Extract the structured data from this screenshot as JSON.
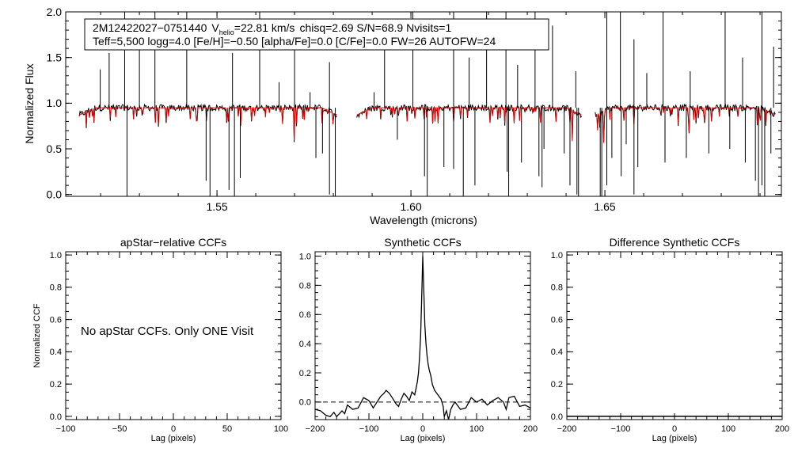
{
  "chart_data": [
    {
      "type": "line",
      "id": "spectrum",
      "xlabel": "Wavelength (microns)",
      "ylabel": "Normalized Flux",
      "xlim": [
        1.511,
        1.6955
      ],
      "ylim": [
        -0.02,
        2.0
      ],
      "xticks": [
        1.55,
        1.6,
        1.65
      ],
      "xtick_labels": [
        "1.55",
        "1.60",
        "1.65"
      ],
      "yticks": [
        0.0,
        0.5,
        1.0,
        1.5,
        2.0
      ],
      "ytick_labels": [
        "0.0",
        "0.5",
        "1.0",
        "1.5",
        "2.0"
      ],
      "annotation_line1": {
        "object": "2M12422027−0751440",
        "v_prefix": "V",
        "v_sub": "helio",
        "v_value": "=22.81 km/s",
        "rest": "chisq=2.69  S/N=68.9  Nvisits=1"
      },
      "annotation_line2": "Teff=5,500 logg=4.0 [Fe/H]=−0.50 [alpha/Fe]=0.0 [C/Fe]=0.0 FW=26 AUTOFW=24",
      "chips": [
        [
          1.5145,
          1.581
        ],
        [
          1.586,
          1.644
        ],
        [
          1.6475,
          1.694
        ]
      ],
      "continuum": 0.95,
      "series": [
        {
          "color": "#000000",
          "role": "observed"
        },
        {
          "color": "#dd0000",
          "role": "model"
        }
      ],
      "emission_spikes": [
        [
          1.5199,
          1.37
        ],
        [
          1.5222,
          1.55
        ],
        [
          1.5262,
          2.0
        ],
        [
          1.53,
          1.62
        ],
        [
          1.534,
          2.0
        ],
        [
          1.5422,
          2.0
        ],
        [
          1.554,
          1.55
        ],
        [
          1.561,
          2.0
        ],
        [
          1.566,
          1.23
        ],
        [
          1.57,
          1.62
        ],
        [
          1.574,
          1.12
        ],
        [
          1.579,
          1.45
        ],
        [
          1.5905,
          1.12
        ],
        [
          1.5932,
          1.8
        ],
        [
          1.6005,
          2.0
        ],
        [
          1.611,
          2.0
        ],
        [
          1.615,
          1.5
        ],
        [
          1.6195,
          2.0
        ],
        [
          1.6245,
          2.0
        ],
        [
          1.6275,
          1.42
        ],
        [
          1.632,
          2.0
        ],
        [
          1.6365,
          1.85
        ],
        [
          1.6425,
          1.35
        ],
        [
          1.6505,
          2.0
        ],
        [
          1.654,
          2.0
        ],
        [
          1.6575,
          1.7
        ],
        [
          1.6608,
          1.33
        ],
        [
          1.665,
          2.0
        ],
        [
          1.672,
          1.35
        ],
        [
          1.681,
          2.0
        ],
        [
          1.6855,
          1.5
        ],
        [
          1.6905,
          2.0
        ],
        [
          1.6935,
          1.62
        ]
      ],
      "absorption_dips": [
        [
          1.5268,
          -0.02
        ],
        [
          1.5472,
          0.15
        ],
        [
          1.5482,
          -0.02
        ],
        [
          1.5531,
          0.05
        ],
        [
          1.5545,
          -0.02
        ],
        [
          1.556,
          0.18
        ],
        [
          1.5755,
          0.4
        ],
        [
          1.5772,
          0.45
        ],
        [
          1.579,
          0.0
        ],
        [
          1.5805,
          -0.02
        ],
        [
          1.5965,
          0.6
        ],
        [
          1.6035,
          0.2
        ],
        [
          1.6042,
          -0.02
        ],
        [
          1.6085,
          0.3
        ],
        [
          1.611,
          0.28
        ],
        [
          1.6135,
          -0.02
        ],
        [
          1.6165,
          0.1
        ],
        [
          1.6248,
          0.25
        ],
        [
          1.6252,
          -0.02
        ],
        [
          1.6285,
          0.35
        ],
        [
          1.633,
          0.2
        ],
        [
          1.6338,
          0.08
        ],
        [
          1.6343,
          0.5
        ],
        [
          1.6395,
          0.45
        ],
        [
          1.641,
          0.1
        ],
        [
          1.6428,
          0.0
        ],
        [
          1.6432,
          -0.02
        ],
        [
          1.6488,
          -0.02
        ],
        [
          1.6492,
          -0.02
        ],
        [
          1.6505,
          0.1
        ],
        [
          1.6518,
          0.4
        ],
        [
          1.6542,
          0.2
        ],
        [
          1.6555,
          0.55
        ],
        [
          1.6575,
          0.0
        ],
        [
          1.6585,
          0.3
        ],
        [
          1.6655,
          0.35
        ],
        [
          1.671,
          0.4
        ],
        [
          1.6768,
          0.45
        ],
        [
          1.6822,
          0.5
        ],
        [
          1.6862,
          0.35
        ],
        [
          1.6888,
          0.15
        ],
        [
          1.6896,
          -0.02
        ],
        [
          1.6905,
          0.1
        ],
        [
          1.6912,
          -0.02
        ],
        [
          1.6928,
          0.45
        ]
      ]
    },
    {
      "type": "line",
      "id": "apstar_ccf",
      "title": "apStar−relative CCFs",
      "xlabel": "Lag (pixels)",
      "ylabel": "Normalized CCF",
      "xlim": [
        -100,
        100
      ],
      "ylim": [
        -0.02,
        1.02
      ],
      "xticks": [
        -100,
        -50,
        0,
        50,
        100
      ],
      "xtick_labels": [
        "−100",
        "−50",
        "0",
        "50",
        "100"
      ],
      "yticks": [
        0.0,
        0.2,
        0.4,
        0.6,
        0.8,
        1.0
      ],
      "ytick_labels": [
        "0.0",
        "0.2",
        "0.4",
        "0.6",
        "0.8",
        "1.0"
      ],
      "message": "No apStar CCFs.  Only ONE Visit",
      "series": []
    },
    {
      "type": "line",
      "id": "synthetic_ccf",
      "title": "Synthetic CCFs",
      "xlabel": "Lag (pixels)",
      "ylabel": "",
      "xlim": [
        -200,
        200
      ],
      "ylim": [
        -0.12,
        1.03
      ],
      "xticks": [
        -200,
        -100,
        0,
        100,
        200
      ],
      "xtick_labels": [
        "−200",
        "−100",
        "0",
        "100",
        "200"
      ],
      "yticks": [
        0.0,
        0.2,
        0.4,
        0.6,
        0.8,
        1.0
      ],
      "ytick_labels": [
        "0.0",
        "0.2",
        "0.4",
        "0.6",
        "0.8",
        "1.0"
      ],
      "zero_line": 0.0,
      "series": [
        {
          "color": "#000000",
          "x": [
            -200,
            -190,
            -180,
            -172,
            -165,
            -160,
            -150,
            -145,
            -140,
            -130,
            -120,
            -110,
            -100,
            -92,
            -85,
            -78,
            -72,
            -68,
            -62,
            -55,
            -50,
            -45,
            -40,
            -35,
            -30,
            -25,
            -20,
            -15,
            -12,
            -10,
            -8,
            -6,
            -4,
            -2,
            0,
            2,
            4,
            6,
            8,
            10,
            12,
            15,
            18,
            22,
            26,
            30,
            34,
            38,
            40,
            44,
            48,
            52,
            56,
            60,
            70,
            80,
            90,
            100,
            110,
            120,
            130,
            140,
            150,
            155,
            160,
            170,
            180,
            190,
            200
          ],
          "y": [
            -0.05,
            -0.06,
            -0.09,
            -0.1,
            -0.07,
            -0.1,
            -0.06,
            -0.08,
            -0.02,
            -0.05,
            -0.04,
            0.03,
            0.01,
            -0.04,
            0.0,
            0.04,
            0.06,
            0.08,
            0.06,
            0.02,
            -0.01,
            -0.03,
            0.02,
            0.06,
            0.04,
            0.01,
            0.07,
            0.05,
            0.1,
            0.14,
            0.2,
            0.3,
            0.45,
            0.7,
            1.0,
            0.75,
            0.52,
            0.4,
            0.32,
            0.26,
            0.22,
            0.18,
            0.12,
            0.08,
            0.06,
            0.04,
            0.02,
            -0.03,
            -0.1,
            -0.06,
            -0.12,
            -0.05,
            -0.02,
            0.0,
            -0.05,
            -0.04,
            0.03,
            0.0,
            0.02,
            -0.02,
            0.01,
            0.03,
            0.0,
            -0.05,
            0.03,
            0.04,
            -0.03,
            -0.02,
            -0.04
          ]
        }
      ]
    },
    {
      "type": "line",
      "id": "difference_ccf",
      "title": "Difference Synthetic CCFs",
      "xlabel": "Lag (pixels)",
      "ylabel": "",
      "xlim": [
        -200,
        200
      ],
      "ylim": [
        -0.02,
        1.02
      ],
      "xticks": [
        -200,
        -100,
        0,
        100,
        200
      ],
      "xtick_labels": [
        "−200",
        "−100",
        "0",
        "100",
        "200"
      ],
      "yticks": [
        0.0,
        0.2,
        0.4,
        0.6,
        0.8,
        1.0
      ],
      "ytick_labels": [
        "0.0",
        "0.2",
        "0.4",
        "0.6",
        "0.8",
        "1.0"
      ],
      "series": [
        {
          "color": "#000000",
          "x": [
            -200,
            200
          ],
          "y": [
            0.0,
            0.0
          ]
        }
      ]
    }
  ]
}
